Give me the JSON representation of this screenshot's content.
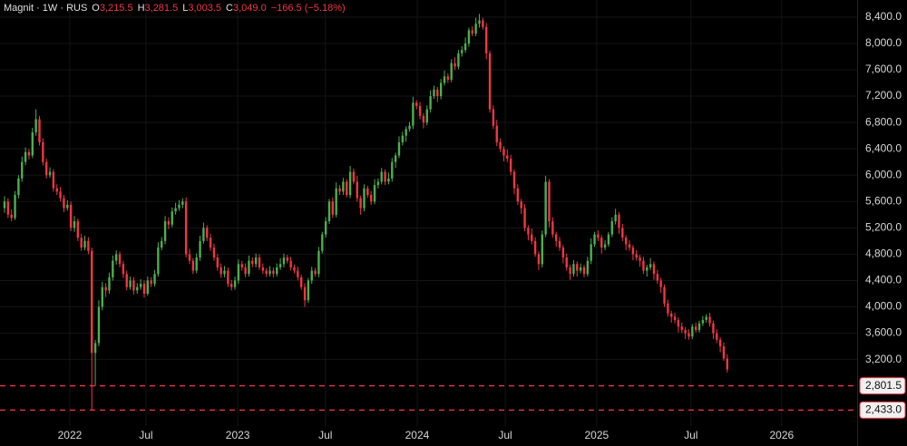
{
  "chart_data": {
    "type": "candlestick",
    "header": {
      "title": "Magnit · 1W · RUS",
      "fields": [
        {
          "key": "O",
          "text": "3,215.5"
        },
        {
          "key": "H",
          "text": "3,281.5"
        },
        {
          "key": "L",
          "text": "3,003.5"
        },
        {
          "key": "C",
          "text": "3,049.0"
        }
      ],
      "change": "−166.5 (−5.18%)"
    },
    "up_color": "#4caf50",
    "down_color": "#f23645",
    "grid": true,
    "ylim": [
      2190,
      8660
    ],
    "yticks": [
      {
        "value": 3200,
        "label": "3,200.0"
      },
      {
        "value": 3600,
        "label": "3,600.0"
      },
      {
        "value": 4000,
        "label": "4,000.0"
      },
      {
        "value": 4400,
        "label": "4,400.0"
      },
      {
        "value": 4800,
        "label": "4,800.0"
      },
      {
        "value": 5200,
        "label": "5,200.0"
      },
      {
        "value": 5600,
        "label": "5,600.0"
      },
      {
        "value": 6000,
        "label": "6,000.0"
      },
      {
        "value": 6400,
        "label": "6,400.0"
      },
      {
        "value": 6800,
        "label": "6,800.0"
      },
      {
        "value": 7200,
        "label": "7,200.0"
      },
      {
        "value": 7600,
        "label": "7,600.0"
      },
      {
        "value": 8000,
        "label": "8,000.0"
      },
      {
        "value": 8400,
        "label": "8,400.0"
      }
    ],
    "xlim": [
      -1.3,
      244.2
    ],
    "xticks": [
      {
        "value": 18.7,
        "label": "2022"
      },
      {
        "value": 40.5,
        "label": "Jul"
      },
      {
        "value": 66.8,
        "label": "2023"
      },
      {
        "value": 91.9,
        "label": "Jul"
      },
      {
        "value": 118.2,
        "label": "2024"
      },
      {
        "value": 143.4,
        "label": "Jul"
      },
      {
        "value": 169.6,
        "label": "2025"
      },
      {
        "value": 196.6,
        "label": "Jul"
      },
      {
        "value": 222.6,
        "label": "2026"
      }
    ],
    "hlines": [
      {
        "value": 2801.5,
        "label": "2,801.5",
        "color": "#f23645"
      },
      {
        "value": 2433.0,
        "label": "2,433.0",
        "color": "#f23645"
      }
    ],
    "candles": [
      [
        5500,
        5680,
        5430,
        5600
      ],
      [
        5600,
        5650,
        5350,
        5400
      ],
      [
        5400,
        5480,
        5300,
        5350
      ],
      [
        5350,
        5760,
        5320,
        5700
      ],
      [
        5700,
        6000,
        5650,
        5950
      ],
      [
        5950,
        6280,
        5900,
        6200
      ],
      [
        6200,
        6420,
        6150,
        6350
      ],
      [
        6350,
        6400,
        6240,
        6300
      ],
      [
        6300,
        6720,
        6260,
        6650
      ],
      [
        6650,
        7000,
        6600,
        6850
      ],
      [
        6850,
        6900,
        6450,
        6500
      ],
      [
        6500,
        6560,
        6150,
        6200
      ],
      [
        6200,
        6250,
        5950,
        6000
      ],
      [
        6000,
        6120,
        5960,
        6050
      ],
      [
        6050,
        6090,
        5750,
        5800
      ],
      [
        5800,
        5860,
        5700,
        5750
      ],
      [
        5750,
        5820,
        5600,
        5650
      ],
      [
        5650,
        5700,
        5440,
        5500
      ],
      [
        5500,
        5620,
        5460,
        5550
      ],
      [
        5550,
        5600,
        5150,
        5200
      ],
      [
        5200,
        5380,
        5140,
        5300
      ],
      [
        5300,
        5340,
        5000,
        5050
      ],
      [
        5050,
        5110,
        4850,
        4900
      ],
      [
        4900,
        5080,
        4860,
        5000
      ],
      [
        5000,
        5060,
        4800,
        4850
      ],
      [
        4850,
        4900,
        2433,
        3300
      ],
      [
        3300,
        3500,
        2801.5,
        3450
      ],
      [
        3450,
        4100,
        3400,
        4000
      ],
      [
        4000,
        4380,
        3950,
        4300
      ],
      [
        4300,
        4360,
        4150,
        4250
      ],
      [
        4250,
        4520,
        4200,
        4450
      ],
      [
        4450,
        4780,
        4400,
        4700
      ],
      [
        4700,
        4860,
        4640,
        4800
      ],
      [
        4800,
        4840,
        4600,
        4650
      ],
      [
        4650,
        4700,
        4440,
        4500
      ],
      [
        4500,
        4550,
        4250,
        4300
      ],
      [
        4300,
        4460,
        4260,
        4400
      ],
      [
        4400,
        4450,
        4190,
        4250
      ],
      [
        4250,
        4360,
        4200,
        4300
      ],
      [
        4300,
        4420,
        4260,
        4350
      ],
      [
        4350,
        4400,
        4140,
        4200
      ],
      [
        4200,
        4460,
        4170,
        4400
      ],
      [
        4400,
        4450,
        4300,
        4350
      ],
      [
        4350,
        4560,
        4310,
        4500
      ],
      [
        4500,
        4980,
        4460,
        4900
      ],
      [
        4900,
        5060,
        4860,
        5000
      ],
      [
        5000,
        5380,
        4950,
        5300
      ],
      [
        5300,
        5360,
        5180,
        5250
      ],
      [
        5250,
        5510,
        5210,
        5450
      ],
      [
        5450,
        5580,
        5400,
        5500
      ],
      [
        5500,
        5620,
        5460,
        5550
      ],
      [
        5550,
        5650,
        5500,
        5600
      ],
      [
        5600,
        5660,
        4750,
        4800
      ],
      [
        4800,
        4880,
        4650,
        4700
      ],
      [
        4700,
        4740,
        4500,
        4550
      ],
      [
        4550,
        4810,
        4510,
        4750
      ],
      [
        4750,
        5080,
        4700,
        5000
      ],
      [
        5000,
        5280,
        4960,
        5200
      ],
      [
        5200,
        5240,
        5000,
        5050
      ],
      [
        5050,
        5110,
        4850,
        4900
      ],
      [
        4900,
        4960,
        4700,
        4750
      ],
      [
        4750,
        4800,
        4550,
        4600
      ],
      [
        4600,
        4660,
        4440,
        4500
      ],
      [
        4500,
        4620,
        4450,
        4550
      ],
      [
        4550,
        4600,
        4300,
        4350
      ],
      [
        4350,
        4410,
        4250,
        4300
      ],
      [
        4300,
        4460,
        4260,
        4400
      ],
      [
        4400,
        4720,
        4350,
        4650
      ],
      [
        4650,
        4700,
        4550,
        4600
      ],
      [
        4600,
        4660,
        4450,
        4500
      ],
      [
        4500,
        4780,
        4460,
        4700
      ],
      [
        4700,
        4750,
        4600,
        4650
      ],
      [
        4650,
        4810,
        4600,
        4750
      ],
      [
        4750,
        4800,
        4560,
        4600
      ],
      [
        4600,
        4660,
        4500,
        4550
      ],
      [
        4550,
        4590,
        4450,
        4500
      ],
      [
        4500,
        4620,
        4460,
        4550
      ],
      [
        4550,
        4600,
        4450,
        4500
      ],
      [
        4500,
        4660,
        4460,
        4600
      ],
      [
        4600,
        4740,
        4560,
        4650
      ],
      [
        4650,
        4810,
        4600,
        4750
      ],
      [
        4750,
        4790,
        4660,
        4700
      ],
      [
        4700,
        4760,
        4550,
        4600
      ],
      [
        4600,
        4640,
        4510,
        4550
      ],
      [
        4550,
        4610,
        4400,
        4450
      ],
      [
        4450,
        4490,
        4260,
        4300
      ],
      [
        4300,
        4360,
        4000,
        4100
      ],
      [
        4100,
        4440,
        4060,
        4400
      ],
      [
        4400,
        4610,
        4350,
        4550
      ],
      [
        4550,
        4590,
        4460,
        4500
      ],
      [
        4500,
        4910,
        4450,
        4850
      ],
      [
        4850,
        5140,
        4810,
        5100
      ],
      [
        5100,
        5360,
        5050,
        5300
      ],
      [
        5300,
        5640,
        5260,
        5600
      ],
      [
        5600,
        5660,
        5350,
        5400
      ],
      [
        5400,
        5890,
        5360,
        5800
      ],
      [
        5800,
        5850,
        5700,
        5750
      ],
      [
        5750,
        5960,
        5700,
        5900
      ],
      [
        5900,
        5940,
        5660,
        5700
      ],
      [
        5700,
        6140,
        5650,
        6050
      ],
      [
        6050,
        6100,
        5860,
        5900
      ],
      [
        5900,
        5990,
        5600,
        5650
      ],
      [
        5650,
        5690,
        5400,
        5500
      ],
      [
        5500,
        5860,
        5450,
        5800
      ],
      [
        5800,
        5840,
        5660,
        5700
      ],
      [
        5700,
        5760,
        5550,
        5600
      ],
      [
        5600,
        5940,
        5560,
        5850
      ],
      [
        5850,
        5950,
        5800,
        5900
      ],
      [
        5900,
        6110,
        5860,
        6050
      ],
      [
        6050,
        6090,
        5850,
        5900
      ],
      [
        5900,
        6040,
        5860,
        5950
      ],
      [
        5950,
        6260,
        5900,
        6200
      ],
      [
        6200,
        6340,
        6110,
        6300
      ],
      [
        6300,
        6590,
        6260,
        6500
      ],
      [
        6500,
        6660,
        6450,
        6600
      ],
      [
        6600,
        6740,
        6510,
        6700
      ],
      [
        6700,
        6810,
        6660,
        6750
      ],
      [
        6750,
        7190,
        6700,
        7100
      ],
      [
        7100,
        7140,
        7000,
        7050
      ],
      [
        7050,
        7110,
        6850,
        6900
      ],
      [
        6900,
        6940,
        6710,
        6800
      ],
      [
        6800,
        7060,
        6760,
        7000
      ],
      [
        7000,
        7290,
        6950,
        7200
      ],
      [
        7200,
        7360,
        7160,
        7300
      ],
      [
        7300,
        7340,
        7110,
        7200
      ],
      [
        7200,
        7460,
        7150,
        7400
      ],
      [
        7400,
        7590,
        7360,
        7500
      ],
      [
        7500,
        7550,
        7400,
        7450
      ],
      [
        7450,
        7760,
        7410,
        7700
      ],
      [
        7700,
        7790,
        7600,
        7650
      ],
      [
        7650,
        7900,
        7610,
        7850
      ],
      [
        7850,
        7960,
        7800,
        7900
      ],
      [
        7900,
        8090,
        7860,
        8000
      ],
      [
        8000,
        8240,
        7950,
        8200
      ],
      [
        8200,
        8260,
        8110,
        8150
      ],
      [
        8150,
        8390,
        8110,
        8300
      ],
      [
        8300,
        8450,
        8240,
        8350
      ],
      [
        8350,
        8390,
        8210,
        8250
      ],
      [
        8250,
        8310,
        7760,
        7850
      ],
      [
        7850,
        7890,
        6950,
        7000
      ],
      [
        7000,
        7060,
        6700,
        6750
      ],
      [
        6750,
        6840,
        6440,
        6500
      ],
      [
        6500,
        6560,
        6350,
        6400
      ],
      [
        6400,
        6440,
        6210,
        6300
      ],
      [
        6300,
        6390,
        6200,
        6250
      ],
      [
        6250,
        6310,
        6000,
        6050
      ],
      [
        6050,
        6090,
        5710,
        5800
      ],
      [
        5800,
        5860,
        5550,
        5600
      ],
      [
        5600,
        5640,
        5410,
        5500
      ],
      [
        5500,
        5560,
        5150,
        5200
      ],
      [
        5200,
        5240,
        5010,
        5100
      ],
      [
        5100,
        5190,
        4950,
        5000
      ],
      [
        5000,
        5060,
        4760,
        4800
      ],
      [
        4800,
        4840,
        4560,
        4650
      ],
      [
        4650,
        5160,
        4600,
        5100
      ],
      [
        5100,
        5990,
        5060,
        5900
      ],
      [
        5900,
        5940,
        5210,
        5300
      ],
      [
        5300,
        5360,
        5050,
        5100
      ],
      [
        5100,
        5140,
        4910,
        5000
      ],
      [
        5000,
        5060,
        4850,
        4900
      ],
      [
        4900,
        4940,
        4660,
        4750
      ],
      [
        4750,
        4810,
        4550,
        4600
      ],
      [
        4600,
        4640,
        4410,
        4500
      ],
      [
        4500,
        4710,
        4460,
        4650
      ],
      [
        4650,
        4690,
        4460,
        4550
      ],
      [
        4550,
        4660,
        4510,
        4600
      ],
      [
        4600,
        4640,
        4450,
        4500
      ],
      [
        4500,
        4760,
        4460,
        4700
      ],
      [
        4700,
        5040,
        4650,
        4950
      ],
      [
        4950,
        5140,
        4910,
        5100
      ],
      [
        5100,
        5160,
        5000,
        5050
      ],
      [
        5050,
        5090,
        4810,
        4900
      ],
      [
        4900,
        5010,
        4860,
        4950
      ],
      [
        4950,
        5140,
        4910,
        5100
      ],
      [
        5100,
        5360,
        5060,
        5300
      ],
      [
        5300,
        5490,
        5250,
        5400
      ],
      [
        5400,
        5440,
        5110,
        5200
      ],
      [
        5200,
        5260,
        5000,
        5050
      ],
      [
        5050,
        5090,
        4860,
        4950
      ],
      [
        4950,
        5010,
        4850,
        4900
      ],
      [
        4900,
        4940,
        4710,
        4800
      ],
      [
        4800,
        4860,
        4700,
        4750
      ],
      [
        4750,
        4790,
        4610,
        4700
      ],
      [
        4700,
        4760,
        4500,
        4550
      ],
      [
        4550,
        4640,
        4460,
        4600
      ],
      [
        4600,
        4740,
        4560,
        4650
      ],
      [
        4650,
        4690,
        4410,
        4500
      ],
      [
        4500,
        4560,
        4350,
        4400
      ],
      [
        4400,
        4440,
        4210,
        4300
      ],
      [
        4300,
        4340,
        4000,
        4050
      ],
      [
        4050,
        4110,
        3850,
        3900
      ],
      [
        3900,
        3940,
        3760,
        3850
      ],
      [
        3850,
        3910,
        3750,
        3800
      ],
      [
        3800,
        3840,
        3610,
        3700
      ],
      [
        3700,
        3760,
        3600,
        3650
      ],
      [
        3650,
        3690,
        3510,
        3600
      ],
      [
        3600,
        3660,
        3500,
        3550
      ],
      [
        3550,
        3740,
        3510,
        3700
      ],
      [
        3700,
        3760,
        3610,
        3650
      ],
      [
        3650,
        3790,
        3610,
        3750
      ],
      [
        3750,
        3860,
        3710,
        3800
      ],
      [
        3800,
        3890,
        3760,
        3850
      ],
      [
        3850,
        3910,
        3700,
        3750
      ],
      [
        3750,
        3790,
        3510,
        3600
      ],
      [
        3600,
        3660,
        3450,
        3500
      ],
      [
        3500,
        3540,
        3310,
        3400
      ],
      [
        3400,
        3460,
        3180,
        3215.5
      ],
      [
        3215.5,
        3281.5,
        3003.5,
        3049
      ]
    ]
  }
}
